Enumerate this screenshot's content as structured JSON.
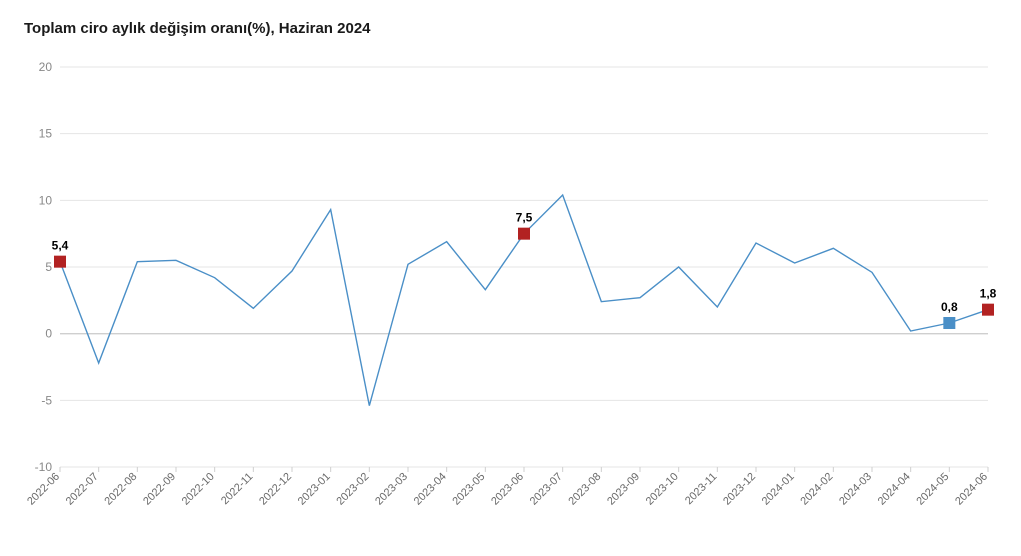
{
  "chart": {
    "type": "line",
    "title": "Toplam ciro aylık değişim oranı(%), Haziran 2024",
    "title_fontsize": 15,
    "title_fontweight": "bold",
    "background_color": "#ffffff",
    "grid_color": "#e5e5e5",
    "line_color": "#4a8fc7",
    "line_width": 1.4,
    "ylim": [
      -10,
      20
    ],
    "ytick_step": 5,
    "yticks": [
      -10,
      -5,
      0,
      5,
      10,
      15,
      20
    ],
    "axis_label_color": "#888888",
    "axis_label_fontsize": 12,
    "xaxis_label_fontsize": 11,
    "xaxis_label_color": "#6a6a6a",
    "xaxis_label_rotation": -45,
    "categories": [
      "2022-06",
      "2022-07",
      "2022-08",
      "2022-09",
      "2022-10",
      "2022-11",
      "2022-12",
      "2023-01",
      "2023-02",
      "2023-03",
      "2023-04",
      "2023-05",
      "2023-06",
      "2023-07",
      "2023-08",
      "2023-09",
      "2023-10",
      "2023-11",
      "2023-12",
      "2024-01",
      "2024-02",
      "2024-03",
      "2024-04",
      "2024-05",
      "2024-06"
    ],
    "values": [
      5.4,
      -2.2,
      5.4,
      5.5,
      4.2,
      1.9,
      4.7,
      9.3,
      -5.4,
      5.2,
      6.9,
      3.3,
      7.5,
      10.4,
      2.4,
      2.7,
      5.0,
      2.0,
      6.8,
      5.3,
      6.4,
      4.6,
      0.2,
      0.8,
      1.8
    ],
    "markers": [
      {
        "index": 0,
        "value": 5.4,
        "label": "5,4",
        "color": "#b22222",
        "shape": "square",
        "size": 12
      },
      {
        "index": 12,
        "value": 7.5,
        "label": "7,5",
        "color": "#b22222",
        "shape": "square",
        "size": 12
      },
      {
        "index": 23,
        "value": 0.8,
        "label": "0,8",
        "color": "#4a8fc7",
        "shape": "square",
        "size": 12
      },
      {
        "index": 24,
        "value": 1.8,
        "label": "1,8",
        "color": "#b22222",
        "shape": "square",
        "size": 12
      }
    ],
    "data_label_fontsize": 12,
    "data_label_fontweight": "bold",
    "data_label_color": "#000000"
  }
}
